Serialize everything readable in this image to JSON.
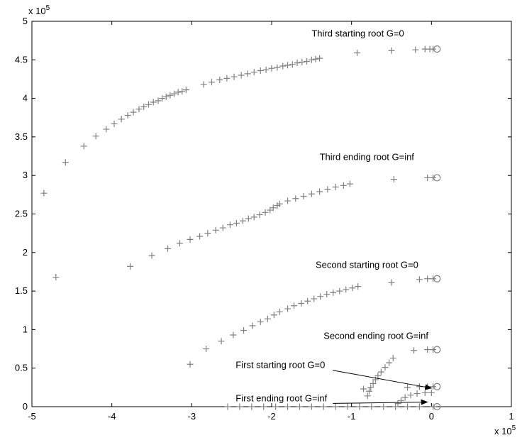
{
  "chart_data": {
    "type": "scatter",
    "title": "",
    "xlabel": "",
    "ylabel": "",
    "xlim": [
      -5,
      1
    ],
    "ylim": [
      0,
      5
    ],
    "x_multiplier_label": "x 10",
    "x_multiplier_exp": "5",
    "y_multiplier_label": "x 10",
    "y_multiplier_exp": "5",
    "x_ticks": [
      "-5",
      "-4",
      "-3",
      "-2",
      "-1",
      "0",
      "1"
    ],
    "y_ticks": [
      "0",
      "0.5",
      "1",
      "1.5",
      "2",
      "2.5",
      "3",
      "3.5",
      "4",
      "4.5",
      "5"
    ],
    "marker_color": "#808080",
    "series": [
      {
        "values": [
          [
            -4.85,
            2.77
          ],
          [
            -4.58,
            3.17
          ],
          [
            -4.35,
            3.38
          ],
          [
            -4.2,
            3.51
          ],
          [
            -4.07,
            3.6
          ],
          [
            -3.97,
            3.67
          ],
          [
            -3.88,
            3.73
          ],
          [
            -3.8,
            3.78
          ],
          [
            -3.73,
            3.82
          ],
          [
            -3.66,
            3.86
          ],
          [
            -3.6,
            3.89
          ],
          [
            -3.54,
            3.92
          ],
          [
            -3.48,
            3.95
          ],
          [
            -3.42,
            3.97
          ],
          [
            -3.37,
            4.0
          ],
          [
            -3.32,
            4.02
          ],
          [
            -3.27,
            4.04
          ],
          [
            -3.22,
            4.06
          ],
          [
            -3.17,
            4.08
          ],
          [
            -3.12,
            4.09
          ],
          [
            -3.07,
            4.11
          ],
          [
            -2.85,
            4.18
          ],
          [
            -2.75,
            4.21
          ],
          [
            -2.65,
            4.24
          ],
          [
            -2.56,
            4.26
          ],
          [
            -2.47,
            4.28
          ],
          [
            -2.38,
            4.3
          ],
          [
            -2.3,
            4.32
          ],
          [
            -2.22,
            4.34
          ],
          [
            -2.14,
            4.36
          ],
          [
            -2.07,
            4.37
          ],
          [
            -2.0,
            4.39
          ],
          [
            -1.93,
            4.4
          ],
          [
            -1.86,
            4.42
          ],
          [
            -1.8,
            4.43
          ],
          [
            -1.74,
            4.44
          ],
          [
            -1.68,
            4.46
          ],
          [
            -1.62,
            4.47
          ],
          [
            -1.56,
            4.48
          ],
          [
            -1.5,
            4.5
          ],
          [
            -1.45,
            4.51
          ],
          [
            -1.4,
            4.52
          ],
          [
            -0.93,
            4.59
          ],
          [
            -0.5,
            4.62
          ],
          [
            -0.2,
            4.63
          ],
          [
            -0.08,
            4.64
          ],
          [
            -0.02,
            4.64
          ],
          [
            0.02,
            4.64
          ]
        ]
      },
      {
        "values": [
          [
            -4.7,
            1.68
          ],
          [
            -3.77,
            1.82
          ],
          [
            -3.5,
            1.96
          ],
          [
            -3.3,
            2.05
          ],
          [
            -3.15,
            2.12
          ],
          [
            -3.02,
            2.17
          ],
          [
            -2.9,
            2.21
          ],
          [
            -2.8,
            2.25
          ],
          [
            -2.7,
            2.29
          ],
          [
            -2.61,
            2.32
          ],
          [
            -2.52,
            2.36
          ],
          [
            -2.44,
            2.38
          ],
          [
            -2.36,
            2.41
          ],
          [
            -2.29,
            2.44
          ],
          [
            -2.22,
            2.46
          ],
          [
            -2.15,
            2.49
          ],
          [
            -2.08,
            2.52
          ],
          [
            -2.02,
            2.55
          ],
          [
            -1.98,
            2.58
          ],
          [
            -1.93,
            2.61
          ],
          [
            -1.9,
            2.63
          ],
          [
            -1.8,
            2.67
          ],
          [
            -1.7,
            2.7
          ],
          [
            -1.6,
            2.73
          ],
          [
            -1.5,
            2.76
          ],
          [
            -1.4,
            2.79
          ],
          [
            -1.3,
            2.82
          ],
          [
            -1.2,
            2.85
          ],
          [
            -1.1,
            2.87
          ],
          [
            -1.02,
            2.89
          ],
          [
            -0.47,
            2.95
          ],
          [
            -0.05,
            2.97
          ],
          [
            0.02,
            2.97
          ]
        ]
      },
      {
        "values": [
          [
            -3.02,
            0.55
          ],
          [
            -2.82,
            0.75
          ],
          [
            -2.63,
            0.85
          ],
          [
            -2.48,
            0.93
          ],
          [
            -2.35,
            0.99
          ],
          [
            -2.24,
            1.05
          ],
          [
            -2.14,
            1.1
          ],
          [
            -2.05,
            1.14
          ],
          [
            -1.97,
            1.19
          ],
          [
            -1.9,
            1.23
          ],
          [
            -1.8,
            1.27
          ],
          [
            -1.72,
            1.31
          ],
          [
            -1.63,
            1.34
          ],
          [
            -1.55,
            1.37
          ],
          [
            -1.47,
            1.4
          ],
          [
            -1.39,
            1.43
          ],
          [
            -1.31,
            1.46
          ],
          [
            -1.23,
            1.48
          ],
          [
            -1.15,
            1.5
          ],
          [
            -1.07,
            1.52
          ],
          [
            -0.99,
            1.54
          ],
          [
            -0.92,
            1.56
          ],
          [
            -0.5,
            1.61
          ],
          [
            -0.15,
            1.65
          ],
          [
            -0.05,
            1.66
          ],
          [
            0.02,
            1.66
          ]
        ]
      },
      {
        "values": [
          [
            -0.8,
            0.14
          ],
          [
            -0.78,
            0.2
          ],
          [
            -0.76,
            0.25
          ],
          [
            -0.73,
            0.3
          ],
          [
            -0.7,
            0.35
          ],
          [
            -0.67,
            0.4
          ],
          [
            -0.63,
            0.45
          ],
          [
            -0.58,
            0.51
          ],
          [
            -0.53,
            0.57
          ],
          [
            -0.48,
            0.63
          ],
          [
            -0.22,
            0.73
          ],
          [
            -0.05,
            0.74
          ],
          [
            0.02,
            0.74
          ]
        ]
      },
      {
        "values": [
          [
            -0.85,
            0.23
          ],
          [
            -0.3,
            0.25
          ],
          [
            -0.15,
            0.26
          ],
          [
            -0.05,
            0.26
          ],
          [
            0.02,
            0.26
          ]
        ]
      },
      {
        "values": [
          [
            -0.45,
            0.0
          ],
          [
            -0.42,
            0.04
          ],
          [
            -0.38,
            0.08
          ],
          [
            -0.33,
            0.12
          ],
          [
            -0.26,
            0.15
          ],
          [
            -0.18,
            0.17
          ],
          [
            -0.08,
            0.18
          ],
          [
            0.0,
            0.18
          ],
          [
            -2.55,
            0.0
          ],
          [
            -2.4,
            0.0
          ],
          [
            -2.25,
            0.0
          ],
          [
            -2.1,
            0.0
          ],
          [
            -1.95,
            0.0
          ],
          [
            -1.8,
            0.0
          ],
          [
            -1.65,
            0.0
          ],
          [
            -1.5,
            0.0
          ],
          [
            -1.35,
            0.0
          ],
          [
            -1.2,
            0.0
          ],
          [
            -1.05,
            0.0
          ],
          [
            -0.9,
            0.0
          ],
          [
            -0.75,
            0.0
          ],
          [
            -0.6,
            0.0
          ],
          [
            -0.3,
            0.0
          ],
          [
            -0.15,
            0.0
          ],
          [
            0.02,
            0.0
          ]
        ]
      }
    ],
    "circle_markers": [
      [
        0.07,
        4.64
      ],
      [
        0.07,
        2.97
      ],
      [
        0.07,
        1.66
      ],
      [
        0.07,
        0.74
      ],
      [
        0.07,
        0.26
      ],
      [
        0.07,
        0.0
      ]
    ],
    "annotations": [
      {
        "text": "Third starting root G=0",
        "x": -1.5,
        "y": 4.8
      },
      {
        "text": "Third ending root G=inf",
        "x": -1.4,
        "y": 3.2
      },
      {
        "text": "Second starting root G=0",
        "x": -1.45,
        "y": 1.8
      },
      {
        "text": "Second ending root G=inf",
        "x": -1.35,
        "y": 0.88
      },
      {
        "text": "First starting root G=0",
        "x": -2.45,
        "y": 0.5,
        "arrow_to": [
          0.0,
          0.24
        ]
      },
      {
        "text": "First ending root G=inf",
        "x": -2.45,
        "y": 0.07,
        "arrow_to": [
          -0.05,
          0.06
        ]
      }
    ]
  }
}
